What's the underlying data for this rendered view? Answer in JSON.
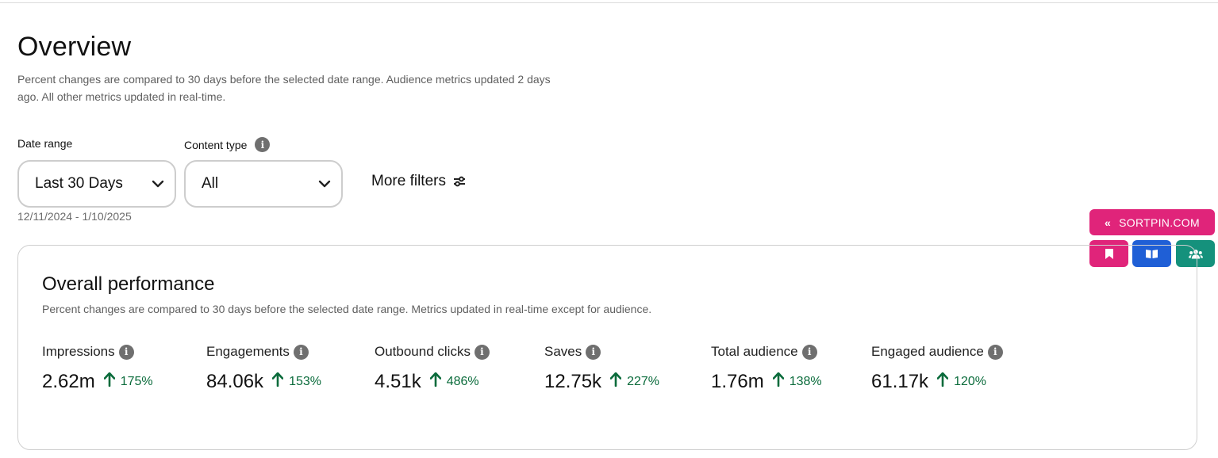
{
  "page": {
    "title": "Overview",
    "subtitle": "Percent changes are compared to 30 days before the selected date range. Audience metrics updated 2 days ago. All other metrics updated in real-time."
  },
  "filters": {
    "date_range": {
      "label": "Date range",
      "value": "Last 30 Days",
      "caption": "12/11/2024 - 1/10/2025"
    },
    "content_type": {
      "label": "Content type",
      "value": "All"
    },
    "more_filters_label": "More filters"
  },
  "extension": {
    "sortpin_label": "SORTPIN.COM",
    "colors": {
      "pink": "#e0247a",
      "blue": "#1f5fd6",
      "teal": "#15917c"
    }
  },
  "performance": {
    "title": "Overall performance",
    "subtitle": "Percent changes are compared to 30 days before the selected date range. Metrics updated in real-time except for audience.",
    "metrics": [
      {
        "label": "Impressions",
        "value": "2.62m",
        "change": "175%"
      },
      {
        "label": "Engagements",
        "value": "84.06k",
        "change": "153%"
      },
      {
        "label": "Outbound clicks",
        "value": "4.51k",
        "change": "486%"
      },
      {
        "label": "Saves",
        "value": "12.75k",
        "change": "227%"
      },
      {
        "label": "Total audience",
        "value": "1.76m",
        "change": "138%"
      },
      {
        "label": "Engaged audience",
        "value": "61.17k",
        "change": "120%"
      }
    ]
  },
  "colors": {
    "positive": "#0a6b3b",
    "info_icon": "#6f6f6f"
  }
}
